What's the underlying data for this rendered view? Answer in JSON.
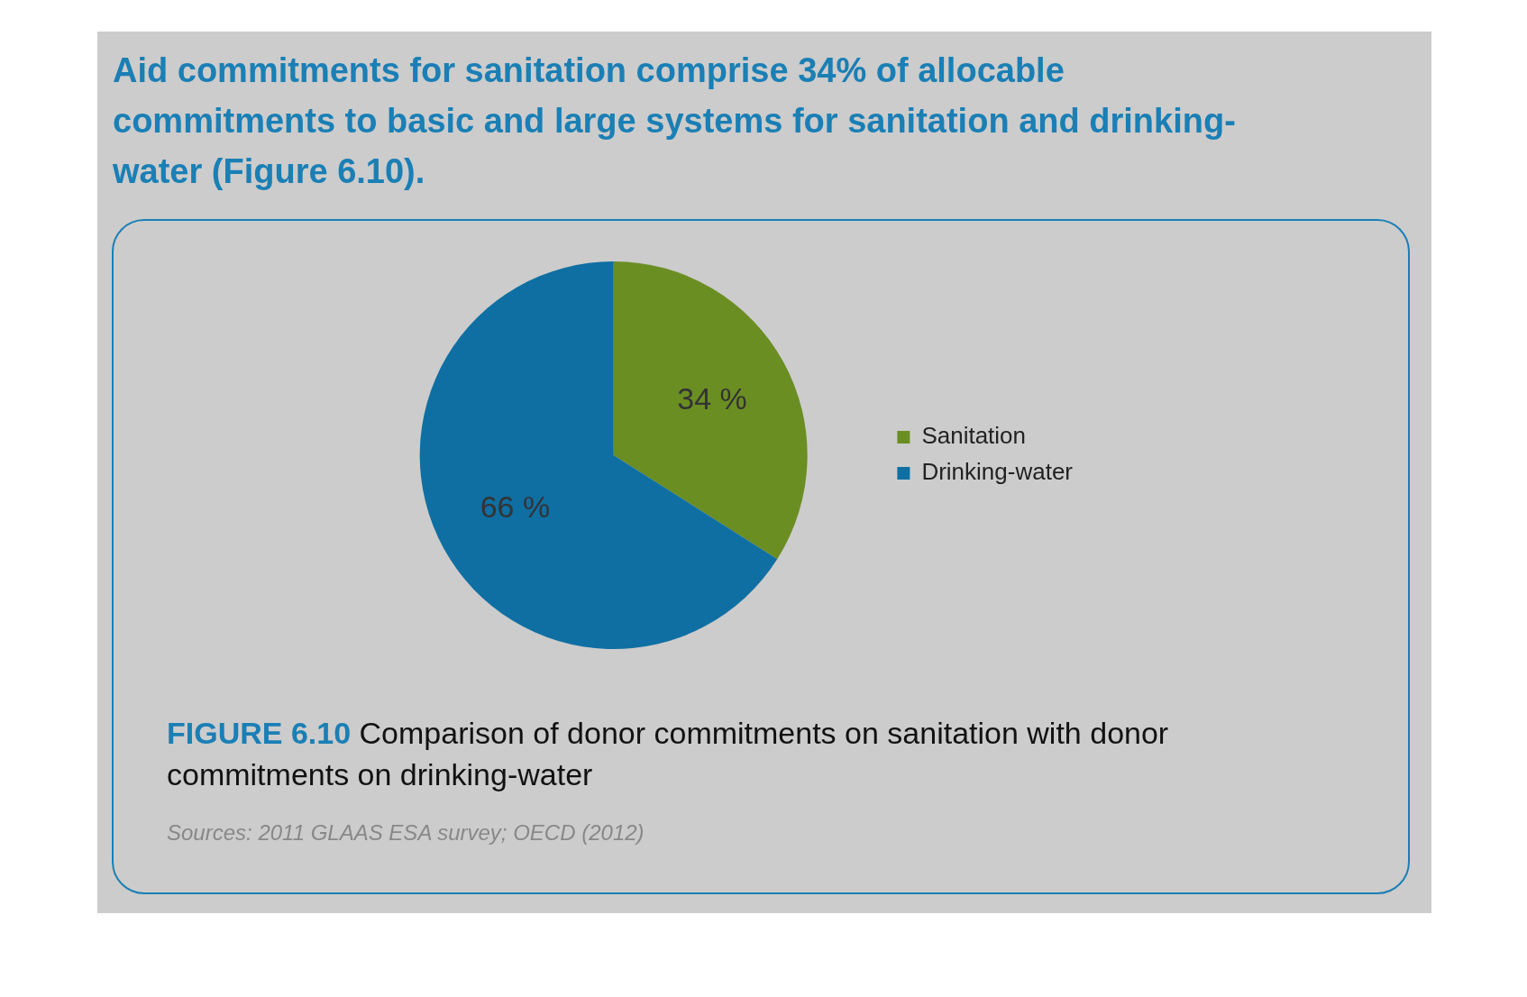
{
  "chart_data": {
    "type": "pie",
    "title": "Aid commitments for sanitation comprise 34% of allocable commitments to basic and large systems for sanitation and drinking-water (Figure 6.10).",
    "categories": [
      "Sanitation",
      "Drinking-water"
    ],
    "values": [
      34,
      66
    ],
    "colors": [
      "#6b8e23",
      "#0f6fa3"
    ],
    "value_labels": [
      "34 %",
      "66 %"
    ],
    "legend": "right",
    "annotations": [
      "FIGURE 6.10 Comparison of donor commitments on sanitation with donor commitments on drinking-water",
      "Sources: 2011 GLAAS ESA survey; OECD (2012)"
    ]
  }
}
